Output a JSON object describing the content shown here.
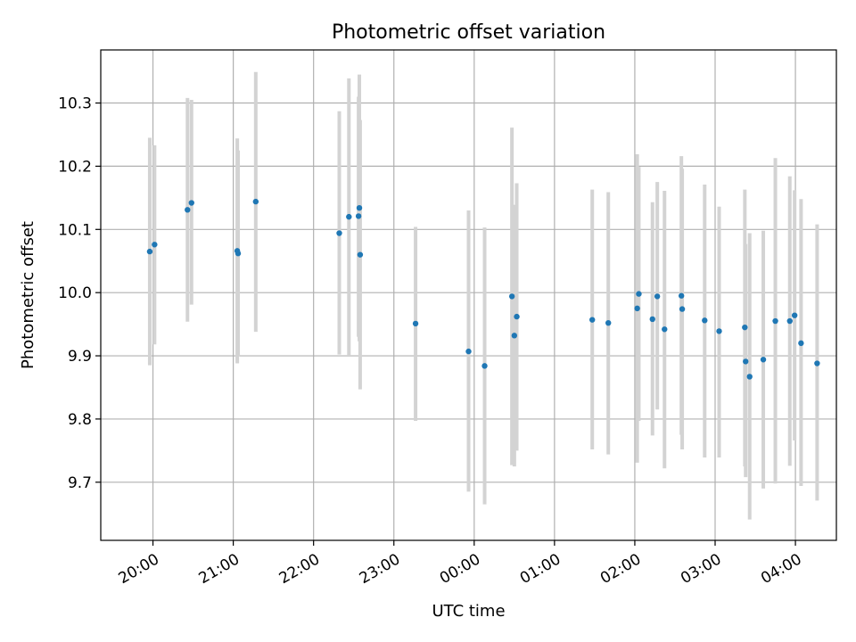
{
  "chart_data": {
    "type": "scatter",
    "title": "Photometric offset variation",
    "xlabel": "UTC time",
    "ylabel": "Photometric offset",
    "x_unit": "hours",
    "xlim": [
      19.35,
      28.51
    ],
    "ylim": [
      9.608,
      10.384
    ],
    "grid": true,
    "x_ticks": [
      {
        "value": 20,
        "label": "20:00"
      },
      {
        "value": 21,
        "label": "21:00"
      },
      {
        "value": 22,
        "label": "22:00"
      },
      {
        "value": 23,
        "label": "23:00"
      },
      {
        "value": 24,
        "label": "00:00"
      },
      {
        "value": 25,
        "label": "01:00"
      },
      {
        "value": 26,
        "label": "02:00"
      },
      {
        "value": 27,
        "label": "03:00"
      },
      {
        "value": 28,
        "label": "04:00"
      }
    ],
    "y_ticks": [
      {
        "value": 9.7,
        "label": "9.7"
      },
      {
        "value": 9.8,
        "label": "9.8"
      },
      {
        "value": 9.9,
        "label": "9.9"
      },
      {
        "value": 10.0,
        "label": "10.0"
      },
      {
        "value": 10.1,
        "label": "10.1"
      },
      {
        "value": 10.2,
        "label": "10.2"
      },
      {
        "value": 10.3,
        "label": "10.3"
      }
    ],
    "colors": {
      "point": "#1f77b4",
      "error_bar": "#d3d3d3",
      "grid": "#b0b0b0"
    },
    "points": [
      {
        "x": 19.96,
        "y": 10.065,
        "ylow": 9.885,
        "yhigh": 10.245
      },
      {
        "x": 20.02,
        "y": 10.076,
        "ylow": 9.918,
        "yhigh": 10.233
      },
      {
        "x": 20.43,
        "y": 10.131,
        "ylow": 9.954,
        "yhigh": 10.308
      },
      {
        "x": 20.48,
        "y": 10.142,
        "ylow": 9.981,
        "yhigh": 10.305
      },
      {
        "x": 21.05,
        "y": 10.066,
        "ylow": 9.888,
        "yhigh": 10.244
      },
      {
        "x": 21.06,
        "y": 10.062,
        "ylow": 9.899,
        "yhigh": 10.225
      },
      {
        "x": 21.28,
        "y": 10.144,
        "ylow": 9.938,
        "yhigh": 10.349
      },
      {
        "x": 22.32,
        "y": 10.094,
        "ylow": 9.902,
        "yhigh": 10.287
      },
      {
        "x": 22.44,
        "y": 10.12,
        "ylow": 9.9,
        "yhigh": 10.339
      },
      {
        "x": 22.56,
        "y": 10.121,
        "ylow": 9.93,
        "yhigh": 10.31
      },
      {
        "x": 22.57,
        "y": 10.134,
        "ylow": 9.923,
        "yhigh": 10.345
      },
      {
        "x": 22.58,
        "y": 10.06,
        "ylow": 9.847,
        "yhigh": 10.273
      },
      {
        "x": 23.27,
        "y": 9.951,
        "ylow": 9.797,
        "yhigh": 10.104
      },
      {
        "x": 23.93,
        "y": 9.907,
        "ylow": 9.685,
        "yhigh": 10.13
      },
      {
        "x": 24.13,
        "y": 9.884,
        "ylow": 9.665,
        "yhigh": 10.103
      },
      {
        "x": 24.47,
        "y": 9.994,
        "ylow": 9.727,
        "yhigh": 10.261
      },
      {
        "x": 24.5,
        "y": 9.932,
        "ylow": 9.725,
        "yhigh": 10.139
      },
      {
        "x": 24.53,
        "y": 9.962,
        "ylow": 9.75,
        "yhigh": 10.173
      },
      {
        "x": 25.47,
        "y": 9.957,
        "ylow": 9.752,
        "yhigh": 10.163
      },
      {
        "x": 25.67,
        "y": 9.952,
        "ylow": 9.744,
        "yhigh": 10.159
      },
      {
        "x": 26.03,
        "y": 9.975,
        "ylow": 9.731,
        "yhigh": 10.219
      },
      {
        "x": 26.05,
        "y": 9.998,
        "ylow": 9.797,
        "yhigh": 10.199
      },
      {
        "x": 26.22,
        "y": 9.958,
        "ylow": 9.774,
        "yhigh": 10.143
      },
      {
        "x": 26.28,
        "y": 9.994,
        "ylow": 9.815,
        "yhigh": 10.175
      },
      {
        "x": 26.37,
        "y": 9.942,
        "ylow": 9.722,
        "yhigh": 10.161
      },
      {
        "x": 26.58,
        "y": 9.995,
        "ylow": 9.775,
        "yhigh": 10.216
      },
      {
        "x": 26.59,
        "y": 9.974,
        "ylow": 9.752,
        "yhigh": 10.196
      },
      {
        "x": 26.87,
        "y": 9.956,
        "ylow": 9.739,
        "yhigh": 10.171
      },
      {
        "x": 27.05,
        "y": 9.939,
        "ylow": 9.739,
        "yhigh": 10.136
      },
      {
        "x": 27.37,
        "y": 9.945,
        "ylow": 9.725,
        "yhigh": 10.163
      },
      {
        "x": 27.38,
        "y": 9.891,
        "ylow": 9.708,
        "yhigh": 10.077
      },
      {
        "x": 27.43,
        "y": 9.867,
        "ylow": 9.641,
        "yhigh": 10.094
      },
      {
        "x": 27.6,
        "y": 9.894,
        "ylow": 9.69,
        "yhigh": 10.098
      },
      {
        "x": 27.75,
        "y": 9.955,
        "ylow": 9.698,
        "yhigh": 10.213
      },
      {
        "x": 27.93,
        "y": 9.955,
        "ylow": 9.726,
        "yhigh": 10.184
      },
      {
        "x": 27.99,
        "y": 9.964,
        "ylow": 9.766,
        "yhigh": 10.162
      },
      {
        "x": 28.07,
        "y": 9.92,
        "ylow": 9.694,
        "yhigh": 10.148
      },
      {
        "x": 28.27,
        "y": 9.888,
        "ylow": 9.671,
        "yhigh": 10.108
      }
    ]
  }
}
